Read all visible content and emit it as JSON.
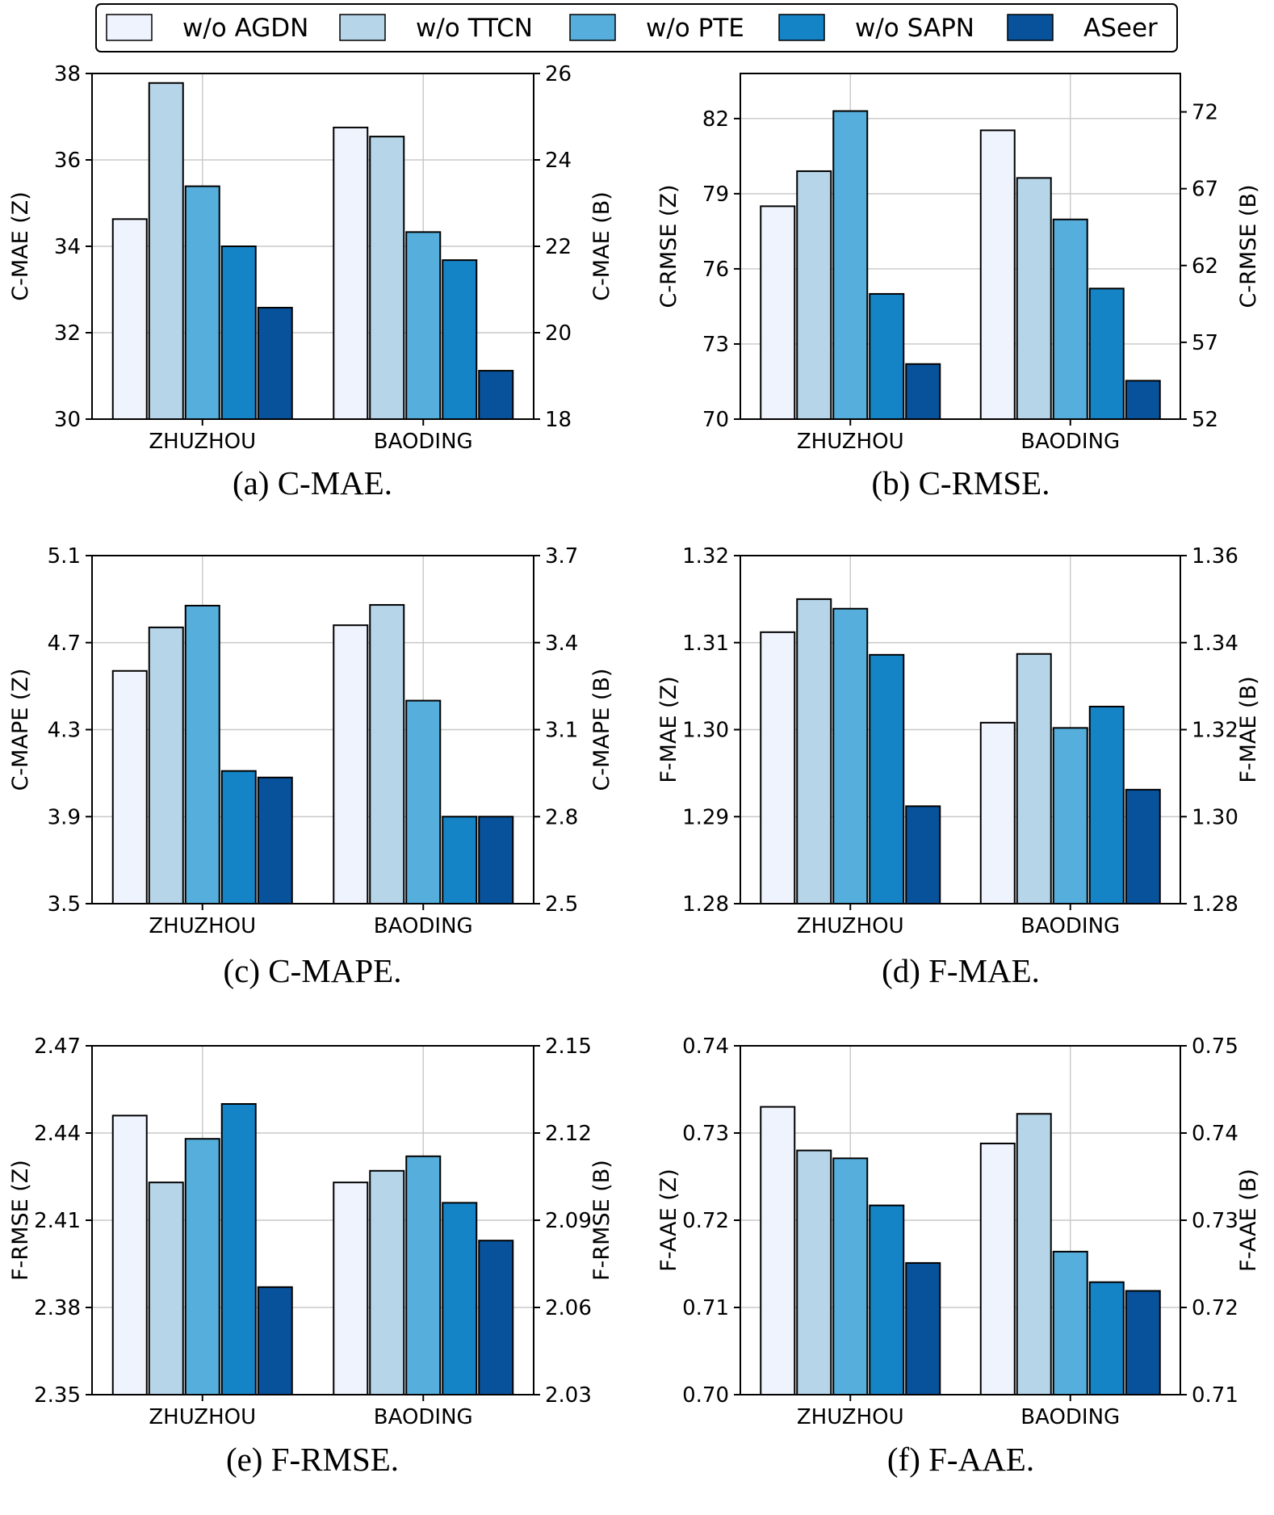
{
  "legend": {
    "entries": [
      {
        "name": "w/o AGDN",
        "color": "#eef3fd"
      },
      {
        "name": "w/o TTCN",
        "color": "#b6d5e8"
      },
      {
        "name": "w/o PTE",
        "color": "#55aedb"
      },
      {
        "name": "w/o SAPN",
        "color": "#1584c6"
      },
      {
        "name": "ASeer",
        "color": "#08529c"
      }
    ]
  },
  "chart_data": [
    {
      "type": "bar",
      "caption": "(a) C-MAE.",
      "categories": [
        "ZHUZHOU",
        "BAODING"
      ],
      "series_names": [
        "w/o AGDN",
        "w/o TTCN",
        "w/o PTE",
        "w/o SAPN",
        "ASeer"
      ],
      "left_axis": {
        "label": "C-MAE (Z)",
        "range": [
          30,
          38
        ],
        "ticks": [
          "30",
          "32",
          "34",
          "36",
          "38"
        ]
      },
      "right_axis": {
        "label": "C-MAE (B)",
        "range": [
          18,
          26
        ],
        "ticks": [
          "18",
          "20",
          "22",
          "24",
          "26"
        ]
      },
      "zhuzhou_values": [
        34.63,
        37.78,
        35.39,
        34.0,
        32.58
      ],
      "baoding_values": [
        24.75,
        24.54,
        22.33,
        21.68,
        19.12
      ]
    },
    {
      "type": "bar",
      "caption": "(b) C-RMSE.",
      "categories": [
        "ZHUZHOU",
        "BAODING"
      ],
      "series_names": [
        "w/o AGDN",
        "w/o TTCN",
        "w/o PTE",
        "w/o SAPN",
        "ASeer"
      ],
      "left_axis": {
        "label": "C-RMSE (Z)",
        "range": [
          70,
          83.8
        ],
        "ticks": [
          "70",
          "73",
          "76",
          "79",
          "82"
        ]
      },
      "right_axis": {
        "label": "C-RMSE (B)",
        "range": [
          52,
          74.5
        ],
        "ticks": [
          "52",
          "57",
          "62",
          "67",
          "72"
        ]
      },
      "zhuzhou_values": [
        78.5,
        79.9,
        82.3,
        75.0,
        72.2
      ],
      "baoding_values": [
        70.8,
        67.7,
        65.0,
        60.5,
        54.5
      ]
    },
    {
      "type": "bar",
      "caption": "(c) C-MAPE.",
      "categories": [
        "ZHUZHOU",
        "BAODING"
      ],
      "series_names": [
        "w/o AGDN",
        "w/o TTCN",
        "w/o PTE",
        "w/o SAPN",
        "ASeer"
      ],
      "left_axis": {
        "label": "C-MAPE (Z)",
        "range": [
          3.5,
          5.1
        ],
        "ticks": [
          "3.5",
          "3.9",
          "4.3",
          "4.7",
          "5.1"
        ]
      },
      "right_axis": {
        "label": "C-MAPE (B)",
        "range": [
          2.5,
          3.7
        ],
        "ticks": [
          "2.5",
          "2.8",
          "3.1",
          "3.4",
          "3.7"
        ]
      },
      "zhuzhou_values": [
        4.57,
        4.77,
        4.87,
        4.11,
        4.08
      ],
      "baoding_values": [
        3.46,
        3.53,
        3.2,
        2.8,
        2.8
      ]
    },
    {
      "type": "bar",
      "caption": "(d) F-MAE.",
      "categories": [
        "ZHUZHOU",
        "BAODING"
      ],
      "series_names": [
        "w/o AGDN",
        "w/o TTCN",
        "w/o PTE",
        "w/o SAPN",
        "ASeer"
      ],
      "left_axis": {
        "label": "F-MAE (Z)",
        "range": [
          1.28,
          1.32
        ],
        "ticks": [
          "1.28",
          "1.29",
          "1.30",
          "1.31",
          "1.32"
        ]
      },
      "right_axis": {
        "label": "F-MAE (B)",
        "range": [
          1.28,
          1.36
        ],
        "ticks": [
          "1.28",
          "1.30",
          "1.32",
          "1.34",
          "1.36"
        ]
      },
      "zhuzhou_values": [
        1.3112,
        1.315,
        1.3139,
        1.3086,
        1.2912
      ],
      "baoding_values": [
        1.3216,
        1.3374,
        1.3204,
        1.3253,
        1.3062
      ]
    },
    {
      "type": "bar",
      "caption": "(e) F-RMSE.",
      "categories": [
        "ZHUZHOU",
        "BAODING"
      ],
      "series_names": [
        "w/o AGDN",
        "w/o TTCN",
        "w/o PTE",
        "w/o SAPN",
        "ASeer"
      ],
      "left_axis": {
        "label": "F-RMSE (Z)",
        "range": [
          2.35,
          2.47
        ],
        "ticks": [
          "2.35",
          "2.38",
          "2.41",
          "2.44",
          "2.47"
        ]
      },
      "right_axis": {
        "label": "F-RMSE (B)",
        "range": [
          2.03,
          2.15
        ],
        "ticks": [
          "2.03",
          "2.06",
          "2.09",
          "2.12",
          "2.15"
        ]
      },
      "zhuzhou_values": [
        2.446,
        2.423,
        2.438,
        2.45,
        2.387
      ],
      "baoding_values": [
        2.103,
        2.107,
        2.112,
        2.096,
        2.083
      ]
    },
    {
      "type": "bar",
      "caption": "(f) F-AAE.",
      "categories": [
        "ZHUZHOU",
        "BAODING"
      ],
      "series_names": [
        "w/o AGDN",
        "w/o TTCN",
        "w/o PTE",
        "w/o SAPN",
        "ASeer"
      ],
      "left_axis": {
        "label": "F-AAE (Z)",
        "range": [
          0.7,
          0.74
        ],
        "ticks": [
          "0.70",
          "0.71",
          "0.72",
          "0.73",
          "0.74"
        ]
      },
      "right_axis": {
        "label": "F-AAE (B)",
        "range": [
          0.71,
          0.75
        ],
        "ticks": [
          "0.71",
          "0.72",
          "0.73",
          "0.74",
          "0.75"
        ]
      },
      "zhuzhou_values": [
        0.733,
        0.728,
        0.7271,
        0.7217,
        0.7151
      ],
      "baoding_values": [
        0.7388,
        0.7422,
        0.7264,
        0.7229,
        0.7219
      ]
    }
  ]
}
